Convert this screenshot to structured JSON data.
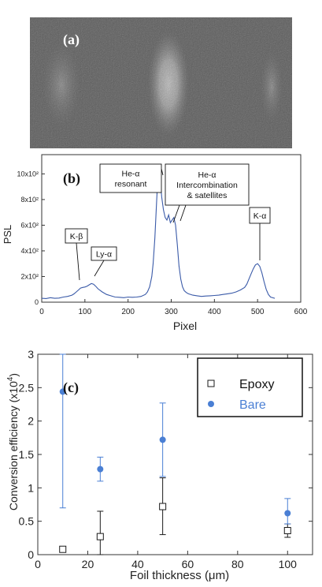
{
  "panel_a": {
    "label": "(a)"
  },
  "chart_data": [
    {
      "type": "line",
      "panel_label": "(b)",
      "xlabel": "Pixel",
      "ylabel": "PSL",
      "xlim": [
        0,
        600
      ],
      "ylim": [
        0,
        1150
      ],
      "xticks": [
        "0",
        "100",
        "200",
        "300",
        "400",
        "500",
        "600"
      ],
      "yticks": [
        {
          "value": 0,
          "label": "0"
        },
        {
          "value": 200,
          "label": "2x10²"
        },
        {
          "value": 400,
          "label": "4x10²"
        },
        {
          "value": 600,
          "label": "6x10²"
        },
        {
          "value": 800,
          "label": "8x10²"
        },
        {
          "value": 1000,
          "label": "10x10²"
        }
      ],
      "series_color": "#3a5aa8",
      "series": [
        {
          "x": [
            0,
            10,
            20,
            30,
            40,
            50,
            60,
            70,
            75,
            80,
            85,
            90,
            95,
            100,
            105,
            110,
            115,
            120,
            125,
            130,
            140,
            150,
            160,
            170,
            180,
            190,
            200,
            210,
            220,
            230,
            240,
            245,
            250,
            255,
            258,
            262,
            266,
            270,
            274,
            278,
            282,
            286,
            290,
            294,
            298,
            302,
            306,
            310,
            314,
            318,
            322,
            326,
            330,
            335,
            340,
            350,
            360,
            370,
            380,
            390,
            400,
            410,
            420,
            430,
            440,
            450,
            460,
            470,
            475,
            480,
            485,
            490,
            495,
            500,
            505,
            510,
            515,
            520,
            525,
            530,
            540
          ],
          "y": [
            30,
            28,
            35,
            30,
            32,
            40,
            45,
            55,
            65,
            80,
            95,
            110,
            115,
            118,
            125,
            135,
            145,
            140,
            125,
            105,
            80,
            60,
            50,
            40,
            38,
            35,
            40,
            38,
            40,
            45,
            60,
            80,
            120,
            200,
            300,
            500,
            780,
            1050,
            980,
            820,
            720,
            660,
            640,
            680,
            620,
            640,
            660,
            600,
            450,
            280,
            180,
            120,
            90,
            75,
            65,
            55,
            50,
            45,
            48,
            50,
            52,
            55,
            60,
            65,
            70,
            80,
            95,
            115,
            140,
            180,
            220,
            260,
            290,
            300,
            280,
            230,
            160,
            100,
            60,
            40,
            30
          ]
        }
      ],
      "annotations": [
        {
          "text": "K-β"
        },
        {
          "text": "Ly-α"
        },
        {
          "text_lines": [
            "He-α",
            "resonant"
          ]
        },
        {
          "text_lines": [
            "He-α",
            "Intercombination",
            "& satellites"
          ]
        },
        {
          "text": "K-α"
        }
      ]
    },
    {
      "type": "scatter",
      "panel_label": "(c)",
      "xlabel": "Foil thickness (μm)",
      "ylabel_main": "Conversion efficiency (x10",
      "ylabel_sup": "4",
      "ylabel_end": ")",
      "xlim": [
        0,
        110
      ],
      "ylim": [
        0,
        3
      ],
      "xticks": [
        "0",
        "20",
        "40",
        "60",
        "80",
        "100"
      ],
      "yticks": [
        "0",
        "0.5",
        "1",
        "1.5",
        "2",
        "2.5",
        "3"
      ],
      "legend_position": "top-right",
      "series": [
        {
          "name": "Epoxy",
          "marker": "open-square",
          "color": "#1a1a1a",
          "x": [
            10,
            25,
            50,
            100
          ],
          "y": [
            0.08,
            0.27,
            0.72,
            0.36
          ],
          "yerr_low": [
            0.04,
            0.27,
            0.42,
            0.1
          ],
          "yerr_high": [
            0.04,
            0.38,
            0.43,
            0.1
          ]
        },
        {
          "name": "Bare",
          "marker": "filled-circle",
          "color": "#4a7fd4",
          "x": [
            10,
            25,
            50,
            100
          ],
          "y": [
            2.44,
            1.28,
            1.72,
            0.62
          ],
          "yerr_low": [
            1.74,
            0.18,
            0.55,
            0.16
          ],
          "yerr_high": [
            0.56,
            0.18,
            0.55,
            0.22
          ]
        }
      ]
    }
  ]
}
